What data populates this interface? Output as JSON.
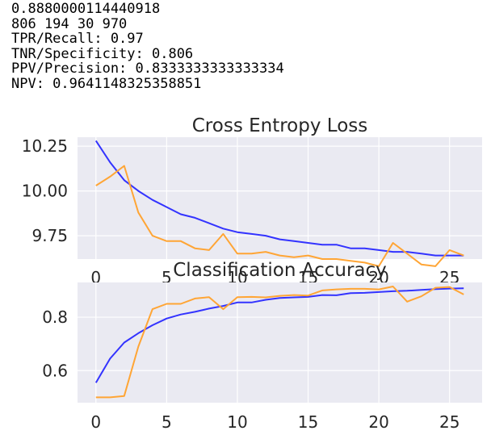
{
  "console": {
    "lines": [
      "0.8880000114440918",
      "806 194 30 970",
      "TPR/Recall: 0.97",
      "TNR/Specificity: 0.806",
      "PPV/Precision: 0.8333333333333334",
      "NPV: 0.9641148325358851"
    ]
  },
  "colors": {
    "background": "#eaeaf2",
    "grid": "#ffffff",
    "series_train": "#3333ff",
    "series_val": "#ffa535"
  },
  "chart_data": [
    {
      "type": "line",
      "title": "Cross Entropy Loss",
      "xlabel": "",
      "ylabel": "",
      "xlim": [
        -1.3,
        27.3
      ],
      "ylim": [
        9.62,
        10.3
      ],
      "xticks": [
        "0",
        "5",
        "10",
        "15",
        "20",
        "25"
      ],
      "yticks": [
        "9.75",
        "10.00",
        "10.25"
      ],
      "grid": true,
      "series": [
        {
          "color": "#3333ff",
          "x": [
            0,
            1,
            2,
            3,
            4,
            5,
            6,
            7,
            8,
            9,
            10,
            11,
            12,
            13,
            14,
            15,
            16,
            17,
            18,
            19,
            20,
            21,
            22,
            23,
            24,
            25,
            26
          ],
          "values": [
            10.28,
            10.16,
            10.06,
            10.0,
            9.95,
            9.91,
            9.87,
            9.85,
            9.82,
            9.79,
            9.77,
            9.76,
            9.75,
            9.73,
            9.72,
            9.71,
            9.7,
            9.7,
            9.68,
            9.68,
            9.67,
            9.66,
            9.66,
            9.65,
            9.64,
            9.64,
            9.64
          ]
        },
        {
          "color": "#ffa535",
          "x": [
            0,
            1,
            2,
            3,
            4,
            5,
            6,
            7,
            8,
            9,
            10,
            11,
            12,
            13,
            14,
            15,
            16,
            17,
            18,
            19,
            20,
            21,
            22,
            23,
            24,
            25,
            26
          ],
          "values": [
            10.03,
            10.08,
            10.14,
            9.88,
            9.75,
            9.72,
            9.72,
            9.68,
            9.67,
            9.76,
            9.65,
            9.65,
            9.66,
            9.64,
            9.63,
            9.64,
            9.62,
            9.62,
            9.61,
            9.6,
            9.58,
            9.71,
            9.65,
            9.59,
            9.58,
            9.67,
            9.64
          ]
        }
      ]
    },
    {
      "type": "line",
      "title": "Classification Accuracy",
      "xlabel": "",
      "ylabel": "",
      "xlim": [
        -1.3,
        27.3
      ],
      "ylim": [
        0.48,
        0.93
      ],
      "xticks": [
        "0",
        "5",
        "10",
        "15",
        "20",
        "25"
      ],
      "yticks": [
        "0.6",
        "0.8"
      ],
      "grid": true,
      "series": [
        {
          "color": "#3333ff",
          "x": [
            0,
            1,
            2,
            3,
            4,
            5,
            6,
            7,
            8,
            9,
            10,
            11,
            12,
            13,
            14,
            15,
            16,
            17,
            18,
            19,
            20,
            21,
            22,
            23,
            24,
            25,
            26
          ],
          "values": [
            0.555,
            0.645,
            0.705,
            0.74,
            0.77,
            0.795,
            0.81,
            0.82,
            0.832,
            0.842,
            0.855,
            0.855,
            0.865,
            0.872,
            0.874,
            0.876,
            0.883,
            0.882,
            0.89,
            0.891,
            0.894,
            0.897,
            0.899,
            0.902,
            0.905,
            0.907,
            0.908
          ]
        },
        {
          "color": "#ffa535",
          "x": [
            0,
            1,
            2,
            3,
            4,
            5,
            6,
            7,
            8,
            9,
            10,
            11,
            12,
            13,
            14,
            15,
            16,
            17,
            18,
            19,
            20,
            21,
            22,
            23,
            24,
            25,
            26
          ],
          "values": [
            0.5,
            0.5,
            0.505,
            0.69,
            0.83,
            0.85,
            0.85,
            0.87,
            0.875,
            0.83,
            0.875,
            0.876,
            0.874,
            0.88,
            0.883,
            0.881,
            0.9,
            0.904,
            0.906,
            0.906,
            0.904,
            0.915,
            0.858,
            0.878,
            0.91,
            0.913,
            0.885
          ]
        }
      ]
    }
  ]
}
